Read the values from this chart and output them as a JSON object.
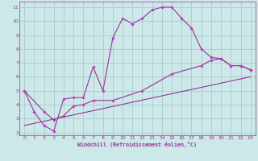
{
  "background_color": "#cce8e8",
  "grid_color": "#aacccc",
  "line_color": "#993399",
  "marker_color": "#cc33cc",
  "xlabel": "Windchill (Refroidissement éolien,°C)",
  "xlim": [
    -0.5,
    23.5
  ],
  "ylim": [
    1.8,
    11.4
  ],
  "xticks": [
    0,
    1,
    2,
    3,
    4,
    5,
    6,
    7,
    8,
    9,
    10,
    11,
    12,
    13,
    14,
    15,
    16,
    17,
    18,
    19,
    20,
    21,
    22,
    23
  ],
  "yticks": [
    2,
    3,
    4,
    5,
    6,
    7,
    8,
    9,
    10,
    11
  ],
  "series1_x": [
    0,
    1,
    2,
    3,
    4,
    5,
    6,
    7,
    8,
    9,
    10,
    11,
    12,
    13,
    14,
    15,
    16,
    17,
    18,
    19,
    20,
    21,
    22,
    23
  ],
  "series1_y": [
    5.0,
    3.5,
    2.5,
    2.1,
    4.4,
    4.5,
    4.5,
    6.7,
    5.0,
    8.8,
    10.2,
    9.8,
    10.2,
    10.8,
    11.0,
    11.0,
    10.2,
    9.5,
    8.0,
    7.4,
    7.3,
    6.8,
    6.8,
    6.5
  ],
  "series2_x": [
    0,
    2,
    3,
    4,
    5,
    6,
    7,
    9,
    12,
    15,
    18,
    19,
    20,
    21,
    22,
    23
  ],
  "series2_y": [
    5.0,
    3.5,
    2.9,
    3.2,
    3.9,
    4.0,
    4.3,
    4.3,
    5.0,
    6.2,
    6.8,
    7.2,
    7.3,
    6.8,
    6.8,
    6.5
  ],
  "series3_x": [
    0,
    23
  ],
  "series3_y": [
    2.5,
    6.0
  ],
  "figsize": [
    3.2,
    2.0
  ],
  "dpi": 100
}
